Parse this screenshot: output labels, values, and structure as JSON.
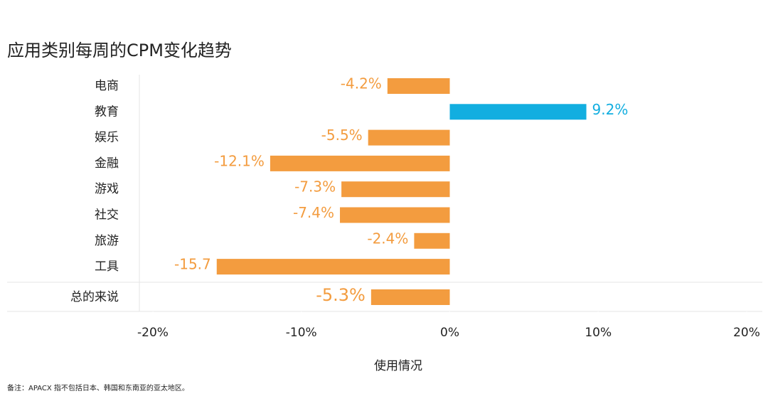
{
  "chart_data": {
    "type": "bar",
    "orientation": "horizontal",
    "title": "应用类别每周的CPM变化趋势",
    "categories": [
      "电商",
      "教育",
      "娱乐",
      "金融",
      "游戏",
      "社交",
      "旅游",
      "工具"
    ],
    "values": [
      -4.2,
      9.2,
      -5.5,
      -12.1,
      -7.3,
      -7.4,
      -2.4,
      -15.7
    ],
    "value_labels": [
      "-4.2%",
      "9.2%",
      "-5.5%",
      "-12.1%",
      "-7.3%",
      "-7.4%",
      "-2.4%",
      "-15.7"
    ],
    "colors": [
      "#f39c3f",
      "#12aee0",
      "#f39c3f",
      "#f39c3f",
      "#f39c3f",
      "#f39c3f",
      "#f39c3f",
      "#f39c3f"
    ],
    "total": {
      "label": "总的来说",
      "value": -5.3,
      "value_label": "-5.3%",
      "color": "#f39c3f"
    },
    "xlim": [
      -20,
      20
    ],
    "xticks": [
      {
        "value": -20,
        "label": "-20%"
      },
      {
        "value": -10,
        "label": "-10%"
      },
      {
        "value": 0,
        "label": "0%"
      },
      {
        "value": 10,
        "label": "10%"
      },
      {
        "value": 20,
        "label": "20%"
      }
    ],
    "xlabel": "使用情况",
    "note": "备注：APACX 指不包括日本、韩国和东南亚的亚太地区。"
  }
}
